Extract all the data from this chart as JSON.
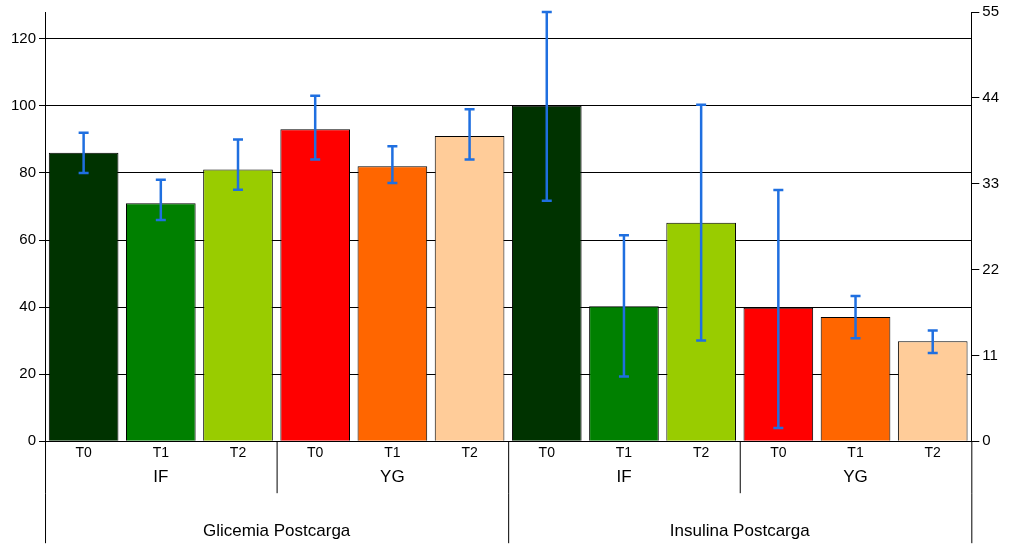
{
  "chart_data": {
    "type": "bar",
    "categories": [
      "T0",
      "T1",
      "T2",
      "T0",
      "T1",
      "T2",
      "T0",
      "T1",
      "T2",
      "T0",
      "T1",
      "T2"
    ],
    "series": [
      {
        "axis": "y",
        "colors": [
          "#003300",
          "#008000",
          "#99cc00",
          "#ff0000",
          "#ff6600",
          "#ffcc99",
          null,
          null,
          null,
          null,
          null,
          null
        ],
        "values": [
          86,
          71,
          81,
          93,
          82,
          91,
          null,
          null,
          null,
          null,
          null,
          null
        ],
        "errors": [
          [
            80,
            92
          ],
          [
            66,
            78
          ],
          [
            75,
            90
          ],
          [
            84,
            103
          ],
          [
            77,
            88
          ],
          [
            84,
            99
          ],
          null,
          null,
          null,
          null,
          null,
          null
        ]
      },
      {
        "axis": "y2",
        "colors": [
          null,
          null,
          null,
          null,
          null,
          null,
          "#003300",
          "#008000",
          "#99cc00",
          "#ff0000",
          "#ff6600",
          "#ffcc99"
        ],
        "values": [
          null,
          null,
          null,
          null,
          null,
          null,
          43.0,
          17.3,
          28.0,
          17.1,
          15.9,
          12.8
        ],
        "errors": [
          null,
          null,
          null,
          null,
          null,
          null,
          [
            30.8,
            55
          ],
          [
            8.3,
            26.4
          ],
          [
            12.9,
            43.1
          ],
          [
            1.7,
            32.2
          ],
          [
            13.2,
            18.6
          ],
          [
            11.3,
            14.2
          ]
        ]
      }
    ],
    "ylim": [
      0,
      128
    ],
    "yticks": [
      0,
      20,
      40,
      60,
      80,
      100,
      120
    ],
    "y2lim": [
      0,
      55
    ],
    "y2ticks": [
      0,
      11,
      22,
      33,
      44,
      55
    ],
    "annotations": [
      "IF",
      "YG",
      "IF",
      "YG",
      "Glicemia Postcarga",
      "Insulina Postcarga"
    ],
    "grid": "y",
    "legend": false
  }
}
